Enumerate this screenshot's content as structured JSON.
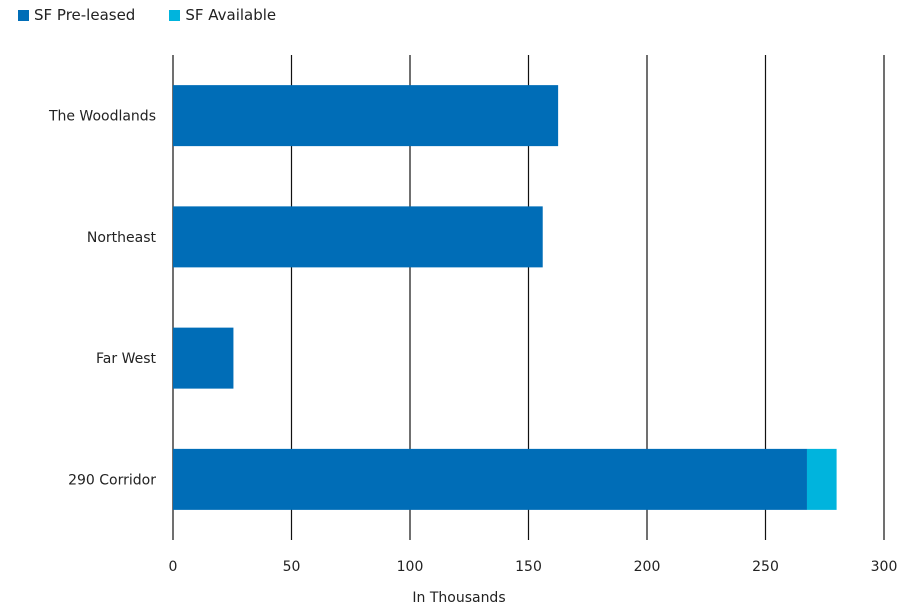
{
  "chart_data": {
    "type": "bar",
    "orientation": "horizontal",
    "stacked": true,
    "categories": [
      "The Woodlands",
      "Northeast",
      "Far West",
      "290 Corridor"
    ],
    "series": [
      {
        "name": "SF Pre-leased",
        "color": "#006db7",
        "values": [
          162.5,
          156,
          25.5,
          267.5
        ]
      },
      {
        "name": "SF Available",
        "color": "#00b4dd",
        "values": [
          0,
          0,
          0,
          12.5
        ]
      }
    ],
    "xlabel": "In Thousands",
    "xlim": [
      0,
      300
    ],
    "xticks": [
      0,
      50,
      100,
      150,
      200,
      250,
      300
    ],
    "grid": "vertical",
    "legend_position": "top-left"
  }
}
